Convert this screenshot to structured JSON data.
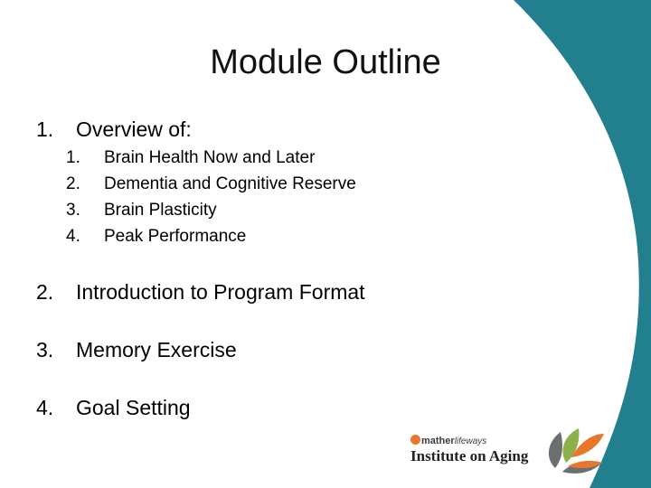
{
  "slide": {
    "title": "Module Outline",
    "outline": [
      {
        "number": "1.",
        "label": "Overview of:",
        "subitems": [
          {
            "number": "1.",
            "label": "Brain Health Now and Later"
          },
          {
            "number": "2.",
            "label": "Dementia and Cognitive Reserve"
          },
          {
            "number": "3.",
            "label": "Brain Plasticity"
          },
          {
            "number": "4.",
            "label": "Peak Performance"
          }
        ]
      },
      {
        "number": "2.",
        "label": "Introduction to Program Format"
      },
      {
        "number": "3.",
        "label": "Memory Exercise"
      },
      {
        "number": "4.",
        "label": "Goal Setting"
      }
    ]
  },
  "logo": {
    "badge_letter": "m",
    "brand_bold": "mather",
    "brand_light": "lifeways",
    "name": "Institute on Aging"
  },
  "colors": {
    "teal": "#227f8e",
    "orange": "#e8772e",
    "green": "#8cb04a",
    "gray": "#6b6f6f"
  }
}
